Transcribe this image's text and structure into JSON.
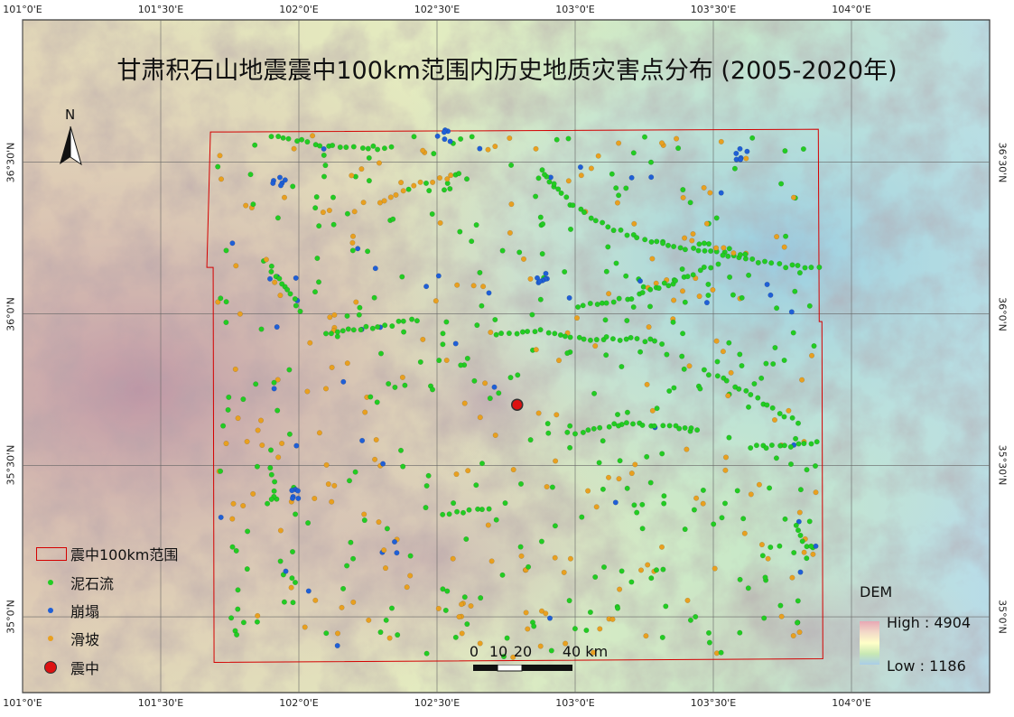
{
  "map": {
    "title": "甘肃积石山地震震中100km范围内历史地质灾害点分布 (2005-2020年)",
    "north_arrow_label": "N",
    "lon_ticks": [
      "101°0'E",
      "101°30'E",
      "102°0'E",
      "102°30'E",
      "103°0'E",
      "103°30'E",
      "104°0'E"
    ],
    "lat_ticks": [
      "36°30'N",
      "36°0'N",
      "35°30'N",
      "35°0'N"
    ],
    "extent": {
      "lon_min": 101.0,
      "lon_max": 104.5,
      "lat_min": 34.75,
      "lat_max": 36.97
    },
    "buffer_extent": {
      "lon_min": 101.68,
      "lon_max": 103.88,
      "lat_min": 34.85,
      "lat_max": 36.6
    },
    "epicenter": {
      "lon": 102.79,
      "lat": 35.7
    },
    "colors": {
      "debris_flow": "#22cc22",
      "collapse": "#1f5fd6",
      "landslide": "#e8a020",
      "epicenter": "#dd1111",
      "buffer": "#d40000"
    }
  },
  "legend": {
    "buffer": "震中100km范围",
    "debris_flow": "泥石流",
    "collapse": "崩塌",
    "landslide": "滑坡",
    "epicenter": "震中"
  },
  "scale_bar": {
    "labels": [
      "0",
      "10",
      "20",
      "40 km"
    ],
    "segments_km": [
      10,
      10,
      20
    ]
  },
  "dem": {
    "title": "DEM",
    "high": "High : 4904",
    "low": "Low : 1186"
  }
}
